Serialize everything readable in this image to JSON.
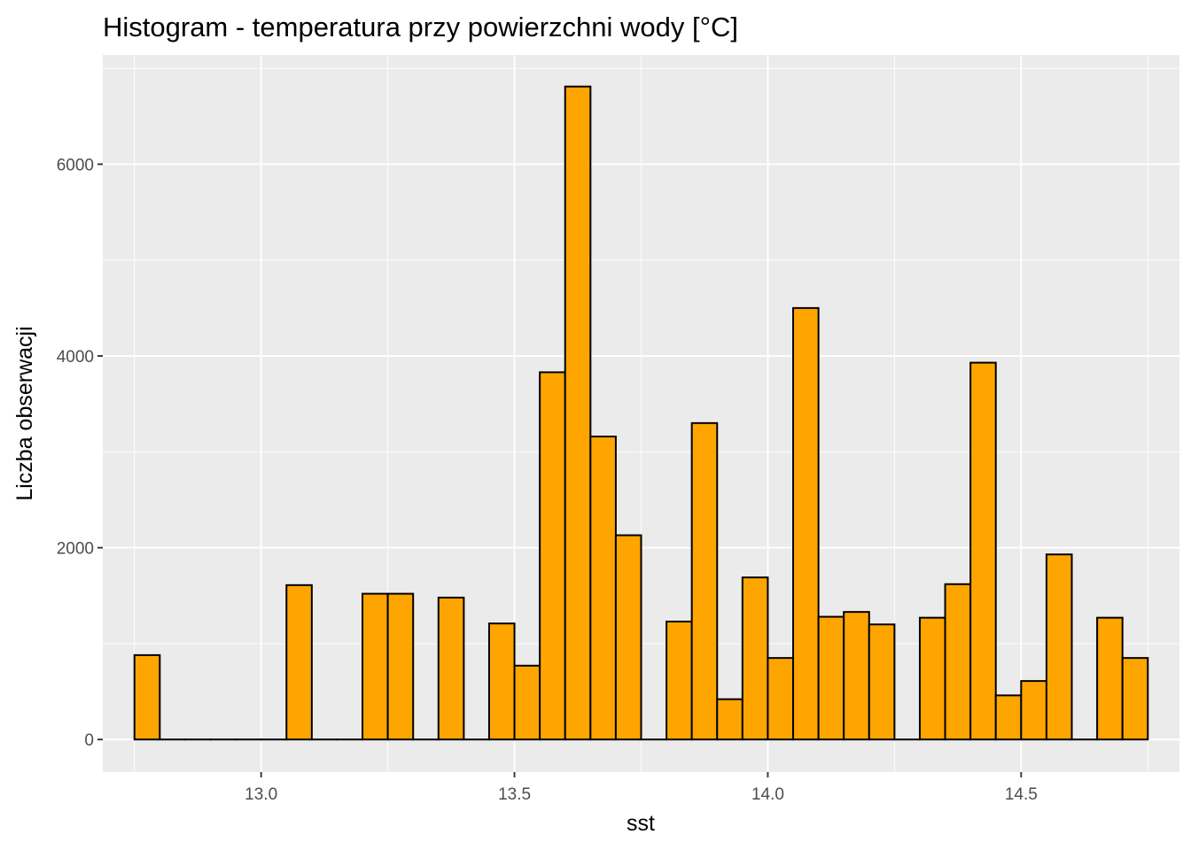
{
  "chart_data": {
    "type": "bar",
    "title": "Histogram - temperatura przy powierzchni wody [°C]",
    "xlabel": "sst",
    "ylabel": "Liczba obserwacji",
    "xlim": [
      12.6875,
      14.8125
    ],
    "ylim": [
      -340,
      7140
    ],
    "x_ticks": [
      13.0,
      13.5,
      14.0,
      14.5
    ],
    "x_tick_labels": [
      "13.0",
      "13.5",
      "14.0",
      "14.5"
    ],
    "y_ticks": [
      0,
      2000,
      4000,
      6000
    ],
    "y_tick_labels": [
      "0",
      "2000",
      "4000",
      "6000"
    ],
    "bin_width": 0.05,
    "bin_centers": [
      12.775,
      12.825,
      12.875,
      12.925,
      12.975,
      13.025,
      13.075,
      13.125,
      13.175,
      13.225,
      13.275,
      13.325,
      13.375,
      13.425,
      13.475,
      13.525,
      13.575,
      13.625,
      13.675,
      13.725,
      13.775,
      13.825,
      13.875,
      13.925,
      13.975,
      14.025,
      14.075,
      14.125,
      14.175,
      14.225,
      14.275,
      14.325,
      14.375,
      14.425,
      14.475,
      14.525,
      14.575,
      14.625,
      14.675,
      14.725
    ],
    "values": [
      880,
      0,
      0,
      0,
      0,
      0,
      1610,
      0,
      0,
      1520,
      1520,
      0,
      1480,
      0,
      1210,
      770,
      3830,
      6810,
      3160,
      2130,
      0,
      1230,
      3300,
      420,
      1690,
      850,
      4500,
      1280,
      1330,
      1200,
      0,
      1270,
      1620,
      3930,
      460,
      610,
      1930,
      0,
      1270,
      850
    ],
    "grid": true,
    "legend": "none",
    "colors": {
      "bar_fill": "#FFA500",
      "bar_outline": "#000000",
      "panel_background": "#EBEBEB",
      "gridline": "#FFFFFF"
    }
  }
}
